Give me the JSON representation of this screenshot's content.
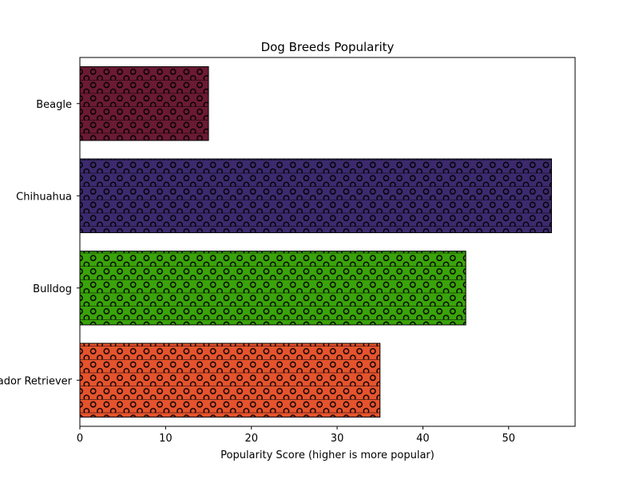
{
  "chart_data": {
    "type": "bar",
    "orientation": "horizontal",
    "title": "Dog Breeds Popularity",
    "xlabel": "Popularity Score (higher is more popular)",
    "ylabel": "",
    "categories": [
      "Beagle",
      "Chihuahua",
      "Bulldog",
      "Labrador Retriever"
    ],
    "values": [
      15,
      55,
      45,
      35
    ],
    "colors": [
      "#6b1a34",
      "#3c2a6e",
      "#3aa30a",
      "#e5532d"
    ],
    "xlim": [
      0,
      57.75
    ],
    "xticks": [
      0,
      10,
      20,
      30,
      40,
      50
    ],
    "xtick_labels": [
      "0",
      "10",
      "20",
      "30",
      "40",
      "50"
    ],
    "hatch": "o-",
    "grid": false,
    "legend": "none"
  }
}
